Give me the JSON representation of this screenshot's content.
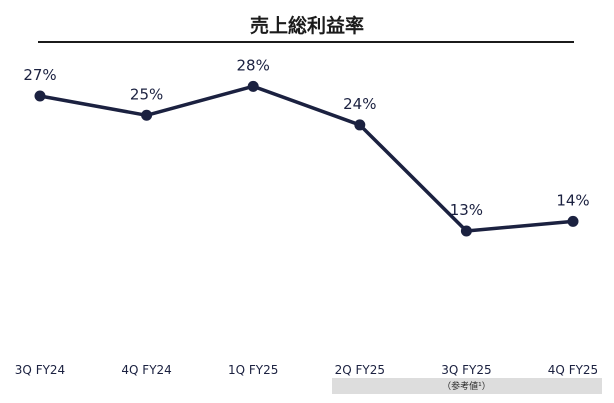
{
  "chart_data": {
    "type": "line",
    "title": "売上総利益率",
    "categories": [
      "3Q FY24",
      "4Q FY24",
      "1Q FY25",
      "2Q FY25",
      "3Q FY25",
      "4Q FY25"
    ],
    "values": [
      27,
      25,
      28,
      24,
      13,
      14
    ],
    "value_labels": [
      "27%",
      "25%",
      "28%",
      "24%",
      "13%",
      "14%"
    ],
    "annotations": [
      {
        "category": "3Q FY25",
        "text": "（参考値¹）"
      }
    ],
    "xlabel": "",
    "ylabel": "",
    "grid": false,
    "legend": "none",
    "line_color": "#1b2140",
    "note_band_color": "#dddddd",
    "rule_color": "#1b1b1b"
  }
}
